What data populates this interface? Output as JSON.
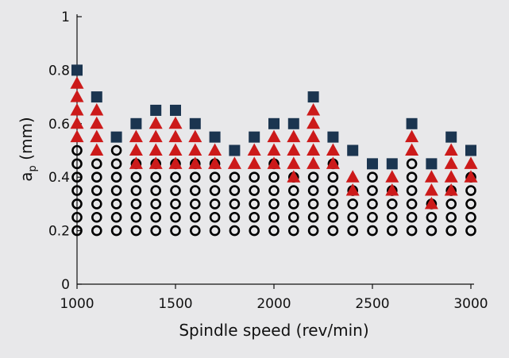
{
  "chart_data": {
    "type": "scatter",
    "xlabel": "Spindle speed (rev/min)",
    "ylabel": "a",
    "ylabel_sub": "p",
    "ylabel_unit": " (mm)",
    "xlim": [
      1000,
      3000
    ],
    "ylim": [
      0,
      1
    ],
    "xticks": [
      "1000",
      "1500",
      "2000",
      "2500",
      "3000"
    ],
    "yticks": [
      "0",
      "0.2",
      "0.4",
      "0.6",
      "0.8",
      "1"
    ],
    "grid": false,
    "legend": "none",
    "colors": {
      "stable": "#000000",
      "marginal": "#cc1a1a",
      "unstable": "#1b3550"
    },
    "series": [
      {
        "marker": "circle",
        "x": [
          1000,
          1000,
          1000,
          1000,
          1000,
          1000,
          1000,
          1100,
          1100,
          1100,
          1100,
          1100,
          1100,
          1200,
          1200,
          1200,
          1200,
          1200,
          1200,
          1200,
          1300,
          1300,
          1300,
          1300,
          1300,
          1300,
          1400,
          1400,
          1400,
          1400,
          1400,
          1400,
          1500,
          1500,
          1500,
          1500,
          1500,
          1500,
          1600,
          1600,
          1600,
          1600,
          1600,
          1600,
          1700,
          1700,
          1700,
          1700,
          1700,
          1700,
          1800,
          1800,
          1800,
          1800,
          1800,
          1900,
          1900,
          1900,
          1900,
          1900,
          2000,
          2000,
          2000,
          2000,
          2000,
          2000,
          2100,
          2100,
          2100,
          2100,
          2100,
          2200,
          2200,
          2200,
          2200,
          2200,
          2300,
          2300,
          2300,
          2300,
          2300,
          2300,
          2400,
          2400,
          2400,
          2400,
          2500,
          2500,
          2500,
          2500,
          2500,
          2600,
          2600,
          2600,
          2600,
          2700,
          2700,
          2700,
          2700,
          2700,
          2700,
          2800,
          2800,
          2800,
          2900,
          2900,
          2900,
          2900,
          3000,
          3000,
          3000,
          3000,
          3000
        ],
        "y": [
          0.2,
          0.25,
          0.3,
          0.35,
          0.4,
          0.45,
          0.5,
          0.2,
          0.25,
          0.3,
          0.35,
          0.4,
          0.45,
          0.2,
          0.25,
          0.3,
          0.35,
          0.4,
          0.45,
          0.5,
          0.2,
          0.25,
          0.3,
          0.35,
          0.4,
          0.45,
          0.2,
          0.25,
          0.3,
          0.35,
          0.4,
          0.45,
          0.2,
          0.25,
          0.3,
          0.35,
          0.4,
          0.45,
          0.2,
          0.25,
          0.3,
          0.35,
          0.4,
          0.45,
          0.2,
          0.25,
          0.3,
          0.35,
          0.4,
          0.45,
          0.2,
          0.25,
          0.3,
          0.35,
          0.4,
          0.2,
          0.25,
          0.3,
          0.35,
          0.4,
          0.2,
          0.25,
          0.3,
          0.35,
          0.4,
          0.45,
          0.2,
          0.25,
          0.3,
          0.35,
          0.4,
          0.2,
          0.25,
          0.3,
          0.35,
          0.4,
          0.2,
          0.25,
          0.3,
          0.35,
          0.4,
          0.45,
          0.2,
          0.25,
          0.3,
          0.35,
          0.2,
          0.25,
          0.3,
          0.35,
          0.4,
          0.2,
          0.25,
          0.3,
          0.35,
          0.2,
          0.25,
          0.3,
          0.35,
          0.4,
          0.45,
          0.2,
          0.25,
          0.3,
          0.2,
          0.25,
          0.3,
          0.35,
          0.2,
          0.25,
          0.3,
          0.35,
          0.4
        ]
      },
      {
        "marker": "triangle",
        "x": [
          1000,
          1000,
          1000,
          1000,
          1000,
          1100,
          1100,
          1100,
          1100,
          1300,
          1300,
          1300,
          1400,
          1400,
          1400,
          1400,
          1500,
          1500,
          1500,
          1500,
          1600,
          1600,
          1600,
          1700,
          1700,
          1800,
          1900,
          1900,
          2000,
          2000,
          2000,
          2100,
          2100,
          2100,
          2100,
          2200,
          2200,
          2200,
          2200,
          2200,
          2300,
          2300,
          2400,
          2400,
          2600,
          2600,
          2700,
          2700,
          2800,
          2800,
          2800,
          2900,
          2900,
          2900,
          2900,
          3000,
          3000
        ],
        "y": [
          0.55,
          0.6,
          0.65,
          0.7,
          0.75,
          0.5,
          0.55,
          0.6,
          0.65,
          0.45,
          0.5,
          0.55,
          0.45,
          0.5,
          0.55,
          0.6,
          0.45,
          0.5,
          0.55,
          0.6,
          0.45,
          0.5,
          0.55,
          0.45,
          0.5,
          0.45,
          0.45,
          0.5,
          0.45,
          0.5,
          0.55,
          0.4,
          0.45,
          0.5,
          0.55,
          0.45,
          0.5,
          0.55,
          0.6,
          0.65,
          0.45,
          0.5,
          0.35,
          0.4,
          0.35,
          0.4,
          0.5,
          0.55,
          0.3,
          0.35,
          0.4,
          0.35,
          0.4,
          0.45,
          0.5,
          0.4,
          0.45
        ]
      },
      {
        "marker": "square",
        "x": [
          1000,
          1100,
          1200,
          1300,
          1400,
          1500,
          1600,
          1700,
          1800,
          1900,
          2000,
          2100,
          2200,
          2300,
          2400,
          2500,
          2600,
          2700,
          2800,
          2900,
          3000
        ],
        "y": [
          0.8,
          0.7,
          0.55,
          0.6,
          0.65,
          0.65,
          0.6,
          0.55,
          0.5,
          0.55,
          0.6,
          0.6,
          0.7,
          0.55,
          0.5,
          0.45,
          0.45,
          0.6,
          0.45,
          0.55,
          0.5
        ]
      }
    ]
  }
}
